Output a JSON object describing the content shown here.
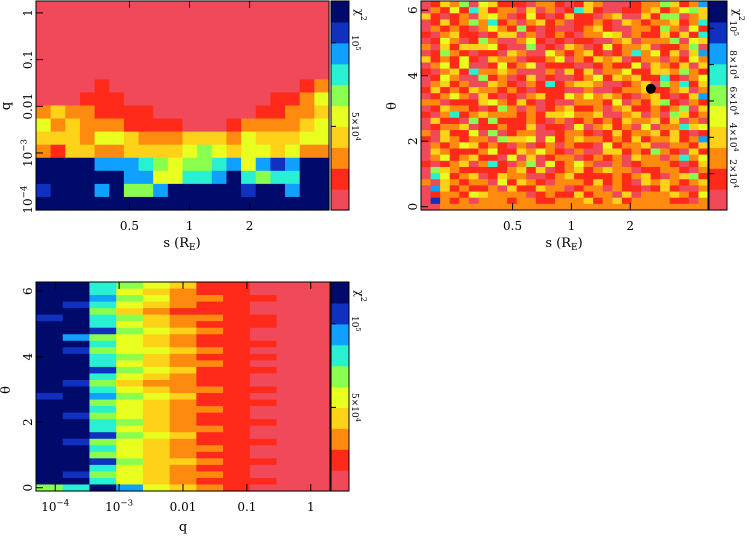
{
  "figure": {
    "colormap": [
      "#f04a5a",
      "#ff2a1a",
      "#ff8a10",
      "#ffd21a",
      "#e8ff20",
      "#8aff50",
      "#28f0d0",
      "#10a0ff",
      "#1030c0",
      "#000a6a"
    ]
  },
  "chart_data": [
    {
      "id": "panel-1",
      "type": "heatmap",
      "xlabel": "s (R",
      "xlabel_sub": "E",
      "ylabel": "q",
      "x_scale": "log",
      "y_scale": "log",
      "xlim": [
        0.17,
        5.0
      ],
      "ylim": [
        6e-05,
        1.8
      ],
      "x_ticks": [
        {
          "v": 0.5,
          "label": "0.5"
        },
        {
          "v": 1,
          "label": "1"
        },
        {
          "v": 2,
          "label": "2"
        }
      ],
      "y_ticks": [
        {
          "v": 0.0001,
          "label": "10",
          "sup": "−4"
        },
        {
          "v": 0.001,
          "label": "10",
          "sup": "−3"
        },
        {
          "v": 0.01,
          "label": "0.01"
        },
        {
          "v": 0.1,
          "label": "0.1"
        },
        {
          "v": 1,
          "label": "1"
        }
      ],
      "colorbar": {
        "label": "χ",
        "label_sup": "2",
        "range": [
          0,
          125000
        ],
        "ticks": [
          {
            "v": 50000,
            "label": "5×10",
            "sup": "4"
          },
          {
            "v": 100000,
            "label": "10",
            "sup": "5"
          }
        ]
      },
      "grid": {
        "nx": 20,
        "ny": 16,
        "row_order": "top_to_bottom",
        "levels": [
          "00000000000000000000",
          "00000000000000000000",
          "00000000000000000000",
          "00000000000000000000",
          "00000000000000000000",
          "00000000000000000000",
          "00001000000000000012",
          "00011100000000001124",
          "23221111000000011223",
          "42322211110001222234",
          "33324432223332433344",
          "21332233334543443422",
          "99997776545567478799",
          "99999977446679656699",
          "89997955799999899799",
          "99999999999999999999"
        ]
      },
      "markers": []
    },
    {
      "id": "panel-2",
      "type": "heatmap",
      "xlabel": "s (R",
      "xlabel_sub": "E",
      "ylabel": "θ",
      "x_scale": "log",
      "y_scale": "linear",
      "xlim": [
        0.17,
        5.0
      ],
      "ylim": [
        -0.1,
        6.28
      ],
      "x_ticks": [
        {
          "v": 0.5,
          "label": "0.5"
        },
        {
          "v": 1,
          "label": "1"
        },
        {
          "v": 2,
          "label": "2"
        }
      ],
      "y_ticks": [
        {
          "v": 0,
          "label": "0"
        },
        {
          "v": 2,
          "label": "2"
        },
        {
          "v": 4,
          "label": "4"
        },
        {
          "v": 6,
          "label": "6"
        }
      ],
      "colorbar": {
        "label": "χ",
        "label_sup": "2",
        "range": [
          0,
          115000
        ],
        "ticks": [
          {
            "v": 20000,
            "label": "2×10",
            "sup": "4"
          },
          {
            "v": 40000,
            "label": "4×10",
            "sup": "4"
          },
          {
            "v": 60000,
            "label": "6×10",
            "sup": "4"
          },
          {
            "v": 80000,
            "label": "8×10",
            "sup": "4"
          },
          {
            "v": 100000,
            "label": "10",
            "sup": "5"
          }
        ]
      },
      "grid": {
        "nx": 30,
        "ny": 34,
        "row_order": "top_to_bottom",
        "levels": [
          "013250431110221013200012253127",
          "021416312203020163100112312453",
          "310120342014101311023003155023",
          "013125261202312011210321223126",
          "021210242151010012310022152041",
          "102311013302012102243021131316",
          "014201520024101011002302225043",
          "203133341005010320141223011250",
          "015210110320042123101262413037",
          "312141032201124021323012202142",
          "024140014124011100121140321303",
          "102316223200020313022411332521",
          "014200512013010012413231161024",
          "023120032102161233200123052613",
          "131213221210111002001223112302",
          "012420310102311424232102310137",
          "220111342131010022214021351021",
          "013221015202012311202311212503",
          "102612322212133422300230205312",
          "031105151112102012121322313020",
          "012230112113011040231204022634",
          "203114050122001221013122313101",
          "103212205334041232212131223127",
          "021243121020120211041223002213",
          "032111241132421020033121521031",
          "024123110403012201212032202624",
          "101230261025041242002012221013",
          "053211111231301231232201122102",
          "064123013220012311112123102351",
          "203212204132102221312103232123",
          "073121120311322012202110131002",
          "012214322220121131220302223214",
          "082120222122112223123122221102",
          "002222222222222222222222222222"
        ]
      },
      "markers": [
        {
          "x": 2.55,
          "y": 3.6,
          "color": "#000000"
        }
      ]
    },
    {
      "id": "panel-3",
      "type": "heatmap",
      "xlabel": "q",
      "xlabel_sub": "",
      "ylabel": "θ",
      "x_scale": "log",
      "y_scale": "linear",
      "xlim": [
        5e-05,
        2.0
      ],
      "ylim": [
        -0.1,
        6.28
      ],
      "x_ticks": [
        {
          "v": 0.0001,
          "label": "10",
          "sup": "−4"
        },
        {
          "v": 0.001,
          "label": "10",
          "sup": "−3"
        },
        {
          "v": 0.01,
          "label": "0.01"
        },
        {
          "v": 0.1,
          "label": "0.1"
        },
        {
          "v": 1,
          "label": "1"
        }
      ],
      "y_ticks": [
        {
          "v": 0,
          "label": "0"
        },
        {
          "v": 2,
          "label": "2"
        },
        {
          "v": 4,
          "label": "4"
        },
        {
          "v": 6,
          "label": "6"
        }
      ],
      "colorbar": {
        "label": "χ",
        "label_sup": "2",
        "range": [
          0,
          125000
        ],
        "ticks": [
          {
            "v": 50000,
            "label": "5×10",
            "sup": "4"
          },
          {
            "v": 100000,
            "label": "10",
            "sup": "5"
          }
        ]
      },
      "grid": {
        "nx": 11,
        "ny": 32,
        "row_order": "top_to_bottom",
        "levels": [
          "99654311000",
          "99643211000",
          "99754221100",
          "98643211000",
          "99532111000",
          "89653221100",
          "99643211100",
          "99854321000",
          "97543211000",
          "99643211100",
          "98544321000",
          "99653211100",
          "99643221000",
          "99854311100",
          "99643211000",
          "98532211000",
          "99643221100",
          "89754311000",
          "99543211100",
          "99643221000",
          "98543211000",
          "99653211100",
          "99643221000",
          "99854311000",
          "98543211100",
          "99643221000",
          "99543211000",
          "99853321100",
          "99643211000",
          "98543221000",
          "99643211100",
          "56974321000"
        ]
      },
      "markers": []
    }
  ]
}
